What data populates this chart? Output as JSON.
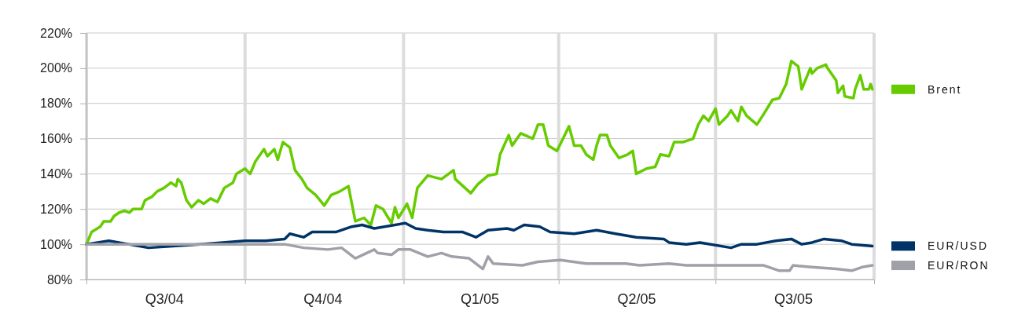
{
  "chart_data": {
    "type": "line",
    "xlim": [
      "2004-07-01",
      "2005-10-01"
    ],
    "xticks": [
      {
        "value": "2004-07-01",
        "label": null
      },
      {
        "value": "2004-08-15",
        "label": "Q3/04"
      },
      {
        "value": "2004-10-01",
        "label": null
      },
      {
        "value": "2004-11-15",
        "label": "Q4/04"
      },
      {
        "value": "2005-01-01",
        "label": null
      },
      {
        "value": "2005-02-14",
        "label": "Q1/05"
      },
      {
        "value": "2005-04-01",
        "label": null
      },
      {
        "value": "2005-05-16",
        "label": "Q2/05"
      },
      {
        "value": "2005-07-01",
        "label": null
      },
      {
        "value": "2005-08-15",
        "label": "Q3/05"
      },
      {
        "value": "2005-10-01",
        "label": null
      }
    ],
    "ylim": [
      80,
      220
    ],
    "yticks": [
      {
        "value": 80,
        "label": "80%"
      },
      {
        "value": 100,
        "label": "100%"
      },
      {
        "value": 120,
        "label": "120%"
      },
      {
        "value": 140,
        "label": "140%"
      },
      {
        "value": 160,
        "label": "160%"
      },
      {
        "value": 180,
        "label": "180%"
      },
      {
        "value": 200,
        "label": "200%"
      },
      {
        "value": 220,
        "label": "220%"
      }
    ],
    "grid": true,
    "legend": "right",
    "marker": "none",
    "line_style": "solid",
    "series": [
      {
        "name": "Brent",
        "color": "#66cc00",
        "x": [
          "2004-07-01",
          "2004-07-04",
          "2004-07-09",
          "2004-07-11",
          "2004-07-15",
          "2004-07-17",
          "2004-07-20",
          "2004-07-23",
          "2004-07-26",
          "2004-07-28",
          "2004-08-02",
          "2004-08-04",
          "2004-08-08",
          "2004-08-11",
          "2004-08-15",
          "2004-08-19",
          "2004-08-22",
          "2004-08-23",
          "2004-08-25",
          "2004-08-28",
          "2004-08-31",
          "2004-09-04",
          "2004-09-07",
          "2004-09-11",
          "2004-09-15",
          "2004-09-19",
          "2004-09-24",
          "2004-09-26",
          "2004-10-01",
          "2004-10-04",
          "2004-10-07",
          "2004-10-12",
          "2004-10-14",
          "2004-10-18",
          "2004-10-20",
          "2004-10-23",
          "2004-10-27",
          "2004-10-30",
          "2004-11-03",
          "2004-11-06",
          "2004-11-11",
          "2004-11-16",
          "2004-11-20",
          "2004-11-25",
          "2004-11-30",
          "2004-12-04",
          "2004-12-09",
          "2004-12-13",
          "2004-12-16",
          "2004-12-20",
          "2004-12-25",
          "2004-12-27",
          "2004-12-29",
          "2005-01-03",
          "2005-01-06",
          "2005-01-09",
          "2005-01-15",
          "2005-01-23",
          "2005-01-30",
          "2005-01-31",
          "2005-02-09",
          "2005-02-13",
          "2005-02-19",
          "2005-02-24",
          "2005-02-26",
          "2005-03-03",
          "2005-03-05",
          "2005-03-10",
          "2005-03-17",
          "2005-03-20",
          "2005-03-23",
          "2005-03-26",
          "2005-03-31",
          "2005-04-07",
          "2005-04-10",
          "2005-04-14",
          "2005-04-17",
          "2005-04-21",
          "2005-04-23",
          "2005-04-25",
          "2005-04-29",
          "2005-05-01",
          "2005-05-06",
          "2005-05-11",
          "2005-05-14",
          "2005-05-16",
          "2005-05-22",
          "2005-05-27",
          "2005-05-30",
          "2005-06-04",
          "2005-06-07",
          "2005-06-12",
          "2005-06-18",
          "2005-06-21",
          "2005-06-24",
          "2005-06-27",
          "2005-07-01",
          "2005-07-03",
          "2005-07-08",
          "2005-07-10",
          "2005-07-14",
          "2005-07-16",
          "2005-07-19",
          "2005-07-25",
          "2005-07-29",
          "2005-08-03",
          "2005-08-07",
          "2005-08-11",
          "2005-08-14",
          "2005-08-18",
          "2005-08-20",
          "2005-08-25",
          "2005-08-26",
          "2005-08-29",
          "2005-09-03",
          "2005-09-04",
          "2005-09-09",
          "2005-09-10",
          "2005-09-13",
          "2005-09-14",
          "2005-09-19",
          "2005-09-20",
          "2005-09-23",
          "2005-09-25",
          "2005-09-28",
          "2005-09-29",
          "2005-09-30"
        ],
        "values": [
          100,
          107,
          110,
          113,
          113,
          116,
          118,
          119,
          118,
          120,
          120,
          125,
          127,
          130,
          132,
          135,
          133,
          137,
          135,
          125,
          121,
          125,
          123,
          126,
          124,
          132,
          135,
          140,
          143,
          140,
          147,
          154,
          150,
          154,
          148,
          158,
          155,
          142,
          137,
          132,
          128,
          122,
          128,
          130,
          133,
          113,
          115,
          111,
          122,
          120,
          112,
          121,
          115,
          123,
          115,
          132,
          139,
          137,
          142,
          137,
          129,
          134,
          139,
          140,
          151,
          162,
          156,
          163,
          160,
          168,
          168,
          156,
          153,
          167,
          156,
          156,
          151,
          148,
          156,
          162,
          162,
          156,
          149,
          151,
          153,
          140,
          143,
          144,
          151,
          150,
          158,
          158,
          160,
          168,
          173,
          170,
          177,
          168,
          173,
          176,
          170,
          178,
          173,
          168,
          174,
          182,
          183,
          191,
          204,
          201,
          188,
          200,
          197,
          200,
          202,
          200,
          193,
          186,
          190,
          184,
          183,
          188,
          196,
          188,
          188,
          191,
          188
        ]
      },
      {
        "name": "EUR/USD",
        "color": "#003366",
        "x": [
          "2004-07-01",
          "2004-07-14",
          "2004-08-06",
          "2004-09-05",
          "2004-10-01",
          "2004-10-13",
          "2004-10-24",
          "2004-10-27",
          "2004-11-04",
          "2004-11-09",
          "2004-11-23",
          "2004-12-02",
          "2004-12-08",
          "2004-12-15",
          "2005-01-02",
          "2005-01-08",
          "2005-01-15",
          "2005-01-24",
          "2005-02-04",
          "2005-02-12",
          "2005-02-19",
          "2005-03-02",
          "2005-03-06",
          "2005-03-12",
          "2005-03-21",
          "2005-03-27",
          "2005-04-10",
          "2005-04-23",
          "2005-05-04",
          "2005-05-16",
          "2005-06-01",
          "2005-06-04",
          "2005-06-14",
          "2005-06-22",
          "2005-07-10",
          "2005-07-16",
          "2005-07-25",
          "2005-08-05",
          "2005-08-14",
          "2005-08-20",
          "2005-08-26",
          "2005-09-02",
          "2005-09-12",
          "2005-09-18",
          "2005-09-30"
        ],
        "values": [
          100,
          102,
          98,
          100,
          102,
          102,
          103,
          106,
          104,
          107,
          107,
          110,
          111,
          109,
          112,
          109,
          108,
          107,
          107,
          104,
          108,
          109,
          108,
          111,
          110,
          107,
          106,
          108,
          106,
          104,
          103,
          101,
          100,
          101,
          98,
          100,
          100,
          102,
          103,
          100,
          101,
          103,
          102,
          100,
          99
        ]
      },
      {
        "name": "EUR/RON",
        "color": "#a0a0a8",
        "x": [
          "2004-07-01",
          "2004-10-24",
          "2004-11-04",
          "2004-11-18",
          "2004-11-26",
          "2004-12-04",
          "2004-12-15",
          "2004-12-17",
          "2004-12-25",
          "2004-12-29",
          "2005-01-05",
          "2005-01-15",
          "2005-01-23",
          "2005-01-29",
          "2005-02-08",
          "2005-02-16",
          "2005-02-19",
          "2005-02-22",
          "2005-03-11",
          "2005-03-20",
          "2005-04-02",
          "2005-04-17",
          "2005-05-10",
          "2005-05-18",
          "2005-06-04",
          "2005-06-14",
          "2005-07-13",
          "2005-07-29",
          "2005-08-07",
          "2005-08-13",
          "2005-08-15",
          "2005-08-26",
          "2005-09-09",
          "2005-09-18",
          "2005-09-24",
          "2005-09-30"
        ],
        "values": [
          100,
          100,
          98,
          97,
          98,
          92,
          97,
          95,
          94,
          97,
          97,
          93,
          95,
          93,
          92,
          86,
          93,
          89,
          88,
          90,
          91,
          89,
          89,
          88,
          89,
          88,
          88,
          88,
          85,
          85,
          88,
          87,
          86,
          85,
          87,
          88
        ]
      }
    ]
  }
}
